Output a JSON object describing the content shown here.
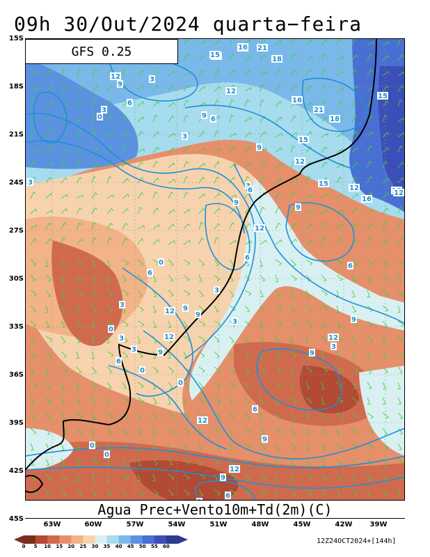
{
  "title": "09h 30/Out/2024 quarta−feira",
  "model": "GFS 0.25",
  "caption": "Agua Prec+Vento10m+Td(2m)(C)",
  "run_info": "12Z24OCT2024+[144h]",
  "lat_labels": [
    "15S",
    "18S",
    "21S",
    "24S",
    "27S",
    "30S",
    "33S",
    "36S",
    "39S",
    "42S",
    "45S"
  ],
  "lon_labels": [
    "63W",
    "60W",
    "57W",
    "54W",
    "51W",
    "48W",
    "45W",
    "42W",
    "39W"
  ],
  "colorbar": {
    "labels": [
      "0",
      "5",
      "10",
      "15",
      "20",
      "25",
      "30",
      "35",
      "40",
      "45",
      "50",
      "55",
      "60"
    ],
    "colors": [
      "#7a2f1e",
      "#b24a35",
      "#d06a4f",
      "#e58f6b",
      "#f1b387",
      "#f6d3ae",
      "#d9f0f2",
      "#a7dbee",
      "#7bb8ea",
      "#5b92e0",
      "#4a6fd2",
      "#3c4fb8",
      "#2e3b8f"
    ]
  },
  "contour_labels": [
    "12",
    "15",
    "21",
    "16",
    "21",
    "18",
    "12",
    "9",
    "3",
    "6",
    "12",
    "3",
    "15",
    "21",
    "16",
    "18",
    "15",
    "0",
    "9",
    "6",
    "3",
    "9",
    "12",
    "15",
    "12",
    "16",
    "18",
    "12",
    "3",
    "6",
    "9",
    "12",
    "9",
    "3",
    "6",
    "12",
    "9",
    "3",
    "0",
    "6",
    "9",
    "12",
    "3",
    "0",
    "3",
    "6",
    "9",
    "12",
    "9",
    "6",
    "3",
    "0",
    "12",
    "9",
    "3",
    "6",
    "0",
    "12",
    "9",
    "0",
    "3",
    "0",
    "3",
    "6",
    "9"
  ],
  "colors": {
    "wind_barbs": "#3dd23d",
    "contours": "#1e8fd8",
    "coast": "#000000",
    "grid": "#9a9a9a"
  }
}
